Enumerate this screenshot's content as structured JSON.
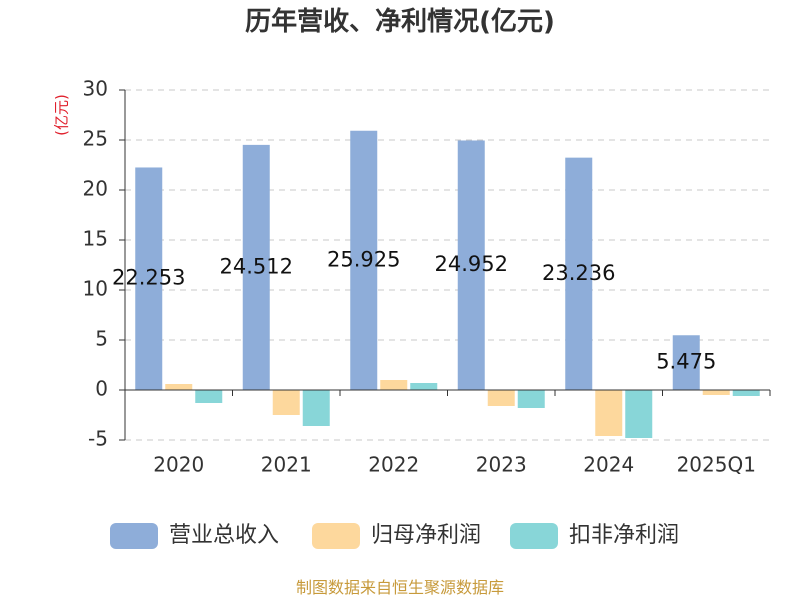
{
  "chart_data": {
    "type": "bar",
    "title": "历年营收、净利情况(亿元)",
    "xlabel": "",
    "ylabel": "(亿元)",
    "categories": [
      "2020",
      "2021",
      "2022",
      "2023",
      "2024",
      "2025Q1"
    ],
    "series": [
      {
        "name": "营业总收入",
        "color": "#8eadd9",
        "data_labels": true,
        "values": [
          22.253,
          24.512,
          25.925,
          24.952,
          23.236,
          5.475
        ]
      },
      {
        "name": "归母净利润",
        "color": "#fdd89d",
        "data_labels": false,
        "values": [
          0.6,
          -2.5,
          1.0,
          -1.6,
          -4.6,
          -0.5
        ]
      },
      {
        "name": "扣非净利润",
        "color": "#88d6d8",
        "data_labels": false,
        "values": [
          -1.3,
          -3.6,
          0.7,
          -1.8,
          -4.8,
          -0.6
        ]
      }
    ],
    "ylim": [
      -5,
      30
    ],
    "yticks": [
      30,
      25,
      20,
      15,
      10,
      5,
      0,
      -5
    ],
    "grid": true,
    "legend_position": "bottom",
    "colors": {
      "title": "#333333",
      "ylabel": "#e0202c",
      "axis": "#333333",
      "grid": "#c8c8c8"
    }
  },
  "footer": {
    "source": "制图数据来自恒生聚源数据库"
  }
}
